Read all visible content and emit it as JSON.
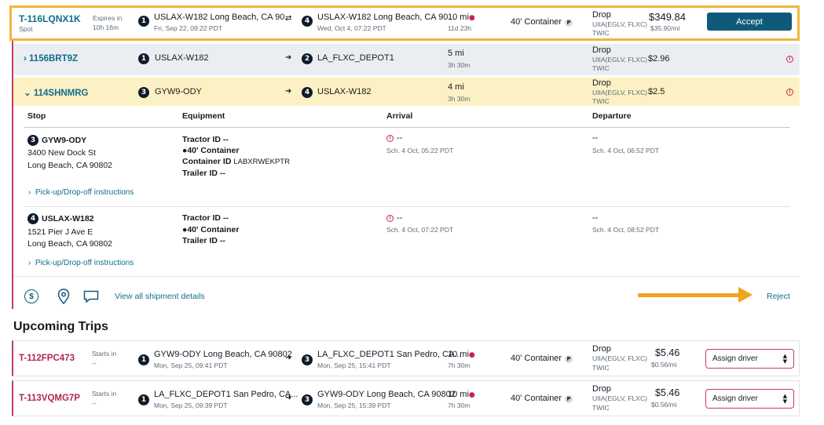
{
  "top_trip": {
    "id": "T-116LQNX1K",
    "type": "Spot",
    "expires_label": "Expires in",
    "expires_value": "10h 16m",
    "stop1_num": "1",
    "stop1_loc": "USLAX-W182 Long Beach, CA 90...",
    "stop1_time": "Fri, Sep 22, 09:22 PDT",
    "stop2_num": "4",
    "stop2_loc": "USLAX-W182 Long Beach, CA 90...",
    "stop2_time": "Wed, Oct 4, 07:22 PDT",
    "distance": "10 mi",
    "duration": "11d 23h",
    "equipment": "40' Container",
    "equip_badge": "P",
    "drop": "Drop",
    "req1": "UIIA(EGLV, FLXC)",
    "req2": "TWIC",
    "price": "$349.84",
    "rate": "$35.90/mi",
    "accept_label": "Accept"
  },
  "load1": {
    "id": "1156BRT9Z",
    "stop1_num": "1",
    "stop1": "USLAX-W182",
    "stop2": "LA_FLXC_DEPOT1",
    "stop2_num": "2",
    "distance": "5 mi",
    "duration": "3h 30m",
    "drop": "Drop",
    "req1": "UIIA(EGLV, FLXC)",
    "req2": "TWIC",
    "price": "$2.96"
  },
  "load2": {
    "id": "114SHNMRG",
    "stop1_num": "3",
    "stop1": "GYW9-ODY",
    "stop2": "USLAX-W182",
    "stop2_num": "4",
    "distance": "4 mi",
    "duration": "3h 30m",
    "drop": "Drop",
    "req1": "UIIA(EGLV, FLXC)",
    "req2": "TWIC",
    "price": "$2.5"
  },
  "details": {
    "headers": {
      "stop": "Stop",
      "equipment": "Equipment",
      "arrival": "Arrival",
      "departure": "Departure"
    },
    "stops": [
      {
        "num": "3",
        "name": "GYW9-ODY",
        "addr1": "3400 New Dock St",
        "addr2": "Long Beach, CA 90802",
        "tractor": "Tractor ID --",
        "container": "40' Container",
        "container_id_label": "Container ID",
        "container_id": "LABXRWEKPTR",
        "trailer": "Trailer ID --",
        "arrival": "--",
        "arrival_sch": "Sch. 4 Oct, 05:22 PDT",
        "departure": "--",
        "departure_sch": "Sch. 4 Oct, 06:52 PDT",
        "instructions": "Pick-up/Drop-off instructions"
      },
      {
        "num": "4",
        "name": "USLAX-W182",
        "addr1": "1521 Pier J Ave E",
        "addr2": "Long Beach, CA 90802",
        "tractor": "Tractor ID --",
        "container": "40' Container",
        "trailer": "Trailer ID --",
        "arrival": "--",
        "arrival_sch": "Sch. 4 Oct, 07:22 PDT",
        "departure": "--",
        "departure_sch": "Sch. 4 Oct, 08:52 PDT",
        "instructions": "Pick-up/Drop-off instructions"
      }
    ],
    "view_all": "View all shipment details",
    "reject": "Reject"
  },
  "upcoming": {
    "title": "Upcoming Trips",
    "trips": [
      {
        "id": "T-112FPC473",
        "starts_label": "Starts in",
        "starts_value": "--",
        "stop1_num": "1",
        "stop1_loc": "GYW9-ODY Long Beach, CA 90802",
        "stop1_time": "Mon, Sep 25, 09:41 PDT",
        "stop2_num": "3",
        "stop2_loc": "LA_FLXC_DEPOT1 San Pedro, CA...",
        "stop2_time": "Mon, Sep 25, 15:41 PDT",
        "distance": "10 mi",
        "duration": "7h 30m",
        "equipment": "40' Container",
        "equip_badge": "P",
        "drop": "Drop",
        "req1": "UIIA(EGLV, FLXC)",
        "req2": "TWIC",
        "price": "$5.46",
        "rate": "$0.56/mi",
        "assign": "Assign driver"
      },
      {
        "id": "T-113VQMG7P",
        "starts_label": "Starts in",
        "starts_value": "--",
        "stop1_num": "1",
        "stop1_loc": "LA_FLXC_DEPOT1 San Pedro, CA...",
        "stop1_time": "Mon, Sep 25, 09:39 PDT",
        "stop2_num": "3",
        "stop2_loc": "GYW9-ODY Long Beach, CA 90802",
        "stop2_time": "Mon, Sep 25, 15:39 PDT",
        "distance": "10 mi",
        "duration": "7h 30m",
        "equipment": "40' Container",
        "equip_badge": "P",
        "drop": "Drop",
        "req1": "UIIA(EGLV, FLXC)",
        "req2": "TWIC",
        "price": "$5.46",
        "rate": "$0.56/mi",
        "assign": "Assign driver"
      }
    ]
  },
  "colors": {
    "accent": "#0f6e8c",
    "highlight": "#f0a51e",
    "warn": "#c7254e"
  }
}
